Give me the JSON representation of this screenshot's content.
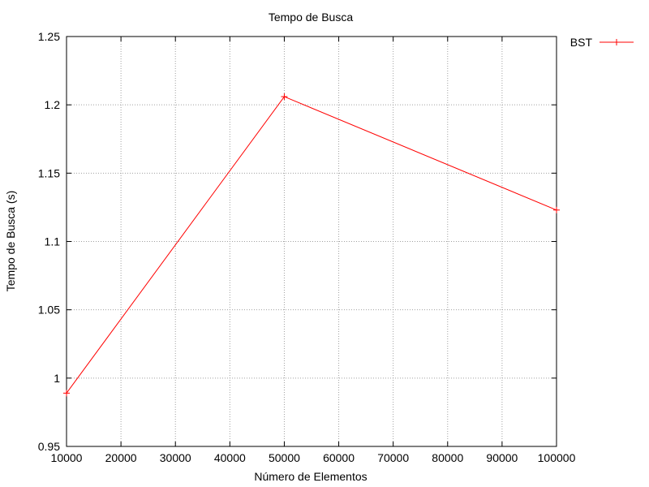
{
  "chart_data": {
    "type": "line",
    "title": "Tempo de Busca",
    "xlabel": "Número de Elementos",
    "ylabel": "Tempo de Busca (s)",
    "xlim": [
      10000,
      100000
    ],
    "ylim": [
      0.95,
      1.25
    ],
    "xticks": [
      "10000",
      "20000",
      "30000",
      "40000",
      "50000",
      "60000",
      "70000",
      "80000",
      "90000",
      "100000"
    ],
    "yticks": [
      "0.95",
      "1",
      "1.05",
      "1.1",
      "1.15",
      "1.2",
      "1.25"
    ],
    "grid": true,
    "legend_position": "outside-top-right",
    "series": [
      {
        "name": "BST",
        "color": "#ff0000",
        "marker": "plus",
        "x": [
          10000,
          50000,
          100000
        ],
        "y": [
          0.989,
          1.206,
          1.123
        ]
      }
    ]
  }
}
